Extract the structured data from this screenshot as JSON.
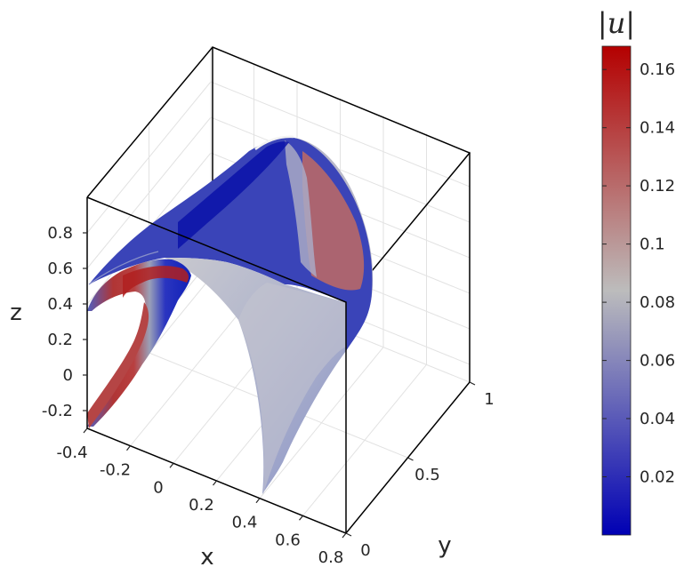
{
  "chart_data": {
    "type": "surface3d",
    "title": "",
    "xlabel": "x",
    "ylabel": "y",
    "zlabel": "z",
    "x_ticks": [
      "-0.4",
      "-0.2",
      "0",
      "0.2",
      "0.4",
      "0.6",
      "0.8"
    ],
    "y_ticks": [
      "0",
      "0.5",
      "1"
    ],
    "z_ticks": [
      "-0.2",
      "0",
      "0.2",
      "0.4",
      "0.6",
      "0.8"
    ],
    "xlim": [
      -0.4,
      0.8
    ],
    "ylim": [
      0,
      1
    ],
    "zlim": [
      -0.3,
      1.0
    ],
    "grid": true,
    "surface": {
      "shape": "parabolic arch extruded along y",
      "peak_x": 0.2,
      "z_min": -0.3,
      "z_max": 1.0,
      "color_by": "|u|"
    },
    "colorbar": {
      "title": "|u|",
      "ticks": [
        "0.02",
        "0.04",
        "0.06",
        "0.08",
        "0.1",
        "0.12",
        "0.14",
        "0.16"
      ],
      "range": [
        0,
        0.168
      ],
      "colormap": [
        "#0000b4",
        "#bcbcbc",
        "#b40000"
      ]
    }
  }
}
